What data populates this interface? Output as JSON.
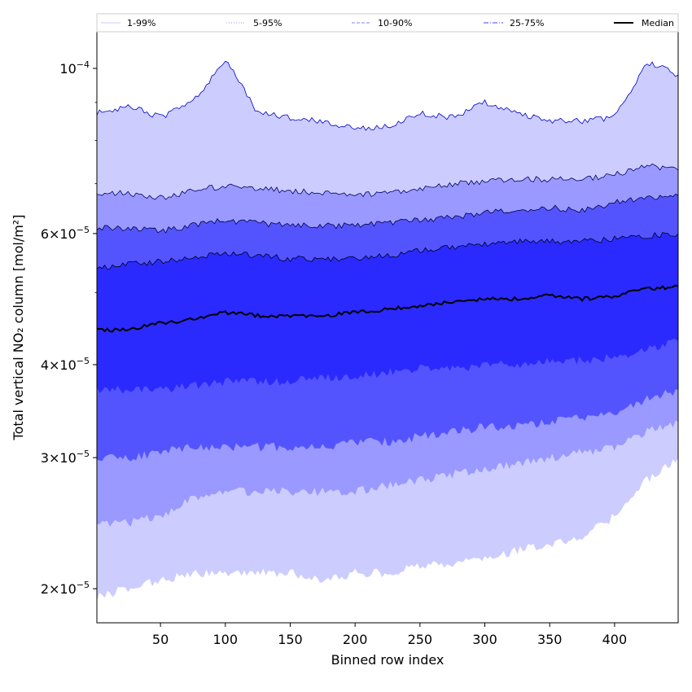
{
  "chart_data": {
    "type": "area",
    "title": "",
    "xlabel": "Binned row index",
    "ylabel": "Total vertical NO₂ column [mol/m²]",
    "xlim": [
      1,
      449
    ],
    "ylim": [
      1.8e-05,
      0.000112
    ],
    "yscale": "log",
    "x_ticks": [
      50,
      100,
      150,
      200,
      250,
      300,
      350,
      400
    ],
    "y_ticks": [
      {
        "value": 2e-05,
        "mantissa": "2",
        "exponent": "−5"
      },
      {
        "value": 3e-05,
        "mantissa": "3",
        "exponent": "−5"
      },
      {
        "value": 4e-05,
        "mantissa": "4",
        "exponent": "−5"
      },
      {
        "value": 6e-05,
        "mantissa": "6",
        "exponent": "−5"
      },
      {
        "value": 0.0001,
        "mantissa": "",
        "exponent": "−4"
      }
    ],
    "legend": {
      "placement": "top",
      "entries": [
        {
          "label": "1-99%",
          "color": "#ccccff",
          "style": "solid"
        },
        {
          "label": "5-95%",
          "color": "#9999ff",
          "style": "dotted"
        },
        {
          "label": "10-90%",
          "color": "#8080ff",
          "style": "dashed"
        },
        {
          "label": "25-75%",
          "color": "#4040ff",
          "style": "dashdot"
        },
        {
          "label": "Median",
          "color": "#000000",
          "style": "solid"
        }
      ]
    },
    "x": [
      1,
      25,
      50,
      75,
      100,
      125,
      150,
      175,
      200,
      225,
      250,
      275,
      300,
      325,
      350,
      375,
      400,
      425,
      449
    ],
    "series": [
      {
        "name": "p99",
        "values": [
          8.7e-05,
          8.9e-05,
          8.6e-05,
          9e-05,
          0.000103,
          8.7e-05,
          8.6e-05,
          8.5e-05,
          8.3e-05,
          8.35e-05,
          8.7e-05,
          8.6e-05,
          9e-05,
          8.7e-05,
          8.5e-05,
          8.5e-05,
          8.6e-05,
          0.000102,
          9.8e-05
        ]
      },
      {
        "name": "p95",
        "values": [
          6.8e-05,
          6.8e-05,
          6.7e-05,
          6.85e-05,
          6.95e-05,
          6.9e-05,
          6.85e-05,
          6.8e-05,
          6.75e-05,
          6.8e-05,
          6.9e-05,
          7e-05,
          7.05e-05,
          7.1e-05,
          7.1e-05,
          7.1e-05,
          7.2e-05,
          7.4e-05,
          7.3e-05
        ]
      },
      {
        "name": "p90",
        "values": [
          6.1e-05,
          6.1e-05,
          6.05e-05,
          6.15e-05,
          6.25e-05,
          6.2e-05,
          6.15e-05,
          6.15e-05,
          6.15e-05,
          6.2e-05,
          6.25e-05,
          6.3e-05,
          6.4e-05,
          6.45e-05,
          6.5e-05,
          6.45e-05,
          6.6e-05,
          6.7e-05,
          6.75e-05
        ]
      },
      {
        "name": "p75",
        "values": [
          5.4e-05,
          5.45e-05,
          5.5e-05,
          5.55e-05,
          5.65e-05,
          5.6e-05,
          5.55e-05,
          5.55e-05,
          5.55e-05,
          5.6e-05,
          5.7e-05,
          5.75e-05,
          5.8e-05,
          5.85e-05,
          5.85e-05,
          5.85e-05,
          5.9e-05,
          5.95e-05,
          6e-05
        ]
      },
      {
        "name": "median",
        "values": [
          4.45e-05,
          4.45e-05,
          4.55e-05,
          4.6e-05,
          4.7e-05,
          4.65e-05,
          4.65e-05,
          4.65e-05,
          4.7e-05,
          4.75e-05,
          4.8e-05,
          4.85e-05,
          4.9e-05,
          4.9e-05,
          4.95e-05,
          4.9e-05,
          4.95e-05,
          5.05e-05,
          5.1e-05
        ]
      },
      {
        "name": "p25",
        "values": [
          3.7e-05,
          3.7e-05,
          3.7e-05,
          3.75e-05,
          3.8e-05,
          3.8e-05,
          3.8e-05,
          3.85e-05,
          3.85e-05,
          3.9e-05,
          3.95e-05,
          3.95e-05,
          4e-05,
          4e-05,
          4.05e-05,
          4.05e-05,
          4.1e-05,
          4.2e-05,
          4.3e-05
        ]
      },
      {
        "name": "p10",
        "values": [
          3e-05,
          3e-05,
          3.05e-05,
          3.1e-05,
          3.1e-05,
          3.1e-05,
          3.1e-05,
          3.1e-05,
          3.15e-05,
          3.15e-05,
          3.2e-05,
          3.25e-05,
          3.3e-05,
          3.3e-05,
          3.35e-05,
          3.4e-05,
          3.45e-05,
          3.6e-05,
          3.7e-05
        ]
      },
      {
        "name": "p5",
        "values": [
          2.45e-05,
          2.45e-05,
          2.5e-05,
          2.65e-05,
          2.7e-05,
          2.7e-05,
          2.7e-05,
          2.7e-05,
          2.7e-05,
          2.75e-05,
          2.8e-05,
          2.85e-05,
          2.9e-05,
          2.95e-05,
          3e-05,
          3.05e-05,
          3.1e-05,
          3.25e-05,
          3.35e-05
        ]
      },
      {
        "name": "p1",
        "values": [
          1.95e-05,
          2e-05,
          2.05e-05,
          2.1e-05,
          2.1e-05,
          2.1e-05,
          2.1e-05,
          2.05e-05,
          2.1e-05,
          2.1e-05,
          2.15e-05,
          2.15e-05,
          2.2e-05,
          2.25e-05,
          2.3e-05,
          2.35e-05,
          2.5e-05,
          2.8e-05,
          3e-05
        ]
      }
    ],
    "bands": [
      {
        "label": "1-99%",
        "lower": "p1",
        "upper": "p99",
        "fill": "#ccccff",
        "edge": "#0000cc"
      },
      {
        "label": "5-95%",
        "lower": "p5",
        "upper": "p95",
        "fill": "#9999ff",
        "edge": "#000066"
      },
      {
        "label": "10-90%",
        "lower": "p10",
        "upper": "p90",
        "fill": "#5454ff",
        "edge": "#000044"
      },
      {
        "label": "25-75%",
        "lower": "p25",
        "upper": "p75",
        "fill": "#2a2aff",
        "edge": "#000022"
      }
    ]
  }
}
